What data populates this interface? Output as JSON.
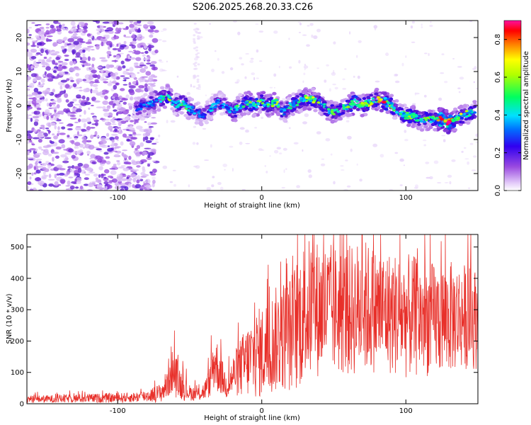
{
  "title": "S206.2025.268.20.33.C26",
  "chart_data": [
    {
      "type": "heatmap",
      "name": "spectrogram",
      "xlabel": "Height of straight line (km)",
      "ylabel": "Frequency (Hz)",
      "xlim": [
        -163,
        150
      ],
      "ylim": [
        -25,
        25
      ],
      "xticks": [
        -100,
        0,
        100
      ],
      "xtick_labels": [
        "-100",
        "0",
        "100"
      ],
      "yticks": [
        -20,
        -10,
        0,
        10,
        20
      ],
      "ytick_labels": [
        "-20",
        "-10",
        "0",
        "10",
        "20"
      ],
      "colorbar": {
        "label": "Normalized spectral amplitude",
        "range": [
          0.0,
          0.9
        ],
        "ticks": [
          0.0,
          0.2,
          0.4,
          0.6,
          0.8
        ],
        "tick_labels": [
          "0.0",
          "0.2",
          "0.4",
          "0.6",
          "0.8"
        ],
        "colormap": [
          "#ffffff",
          "#e0c8f8",
          "#9a4ae0",
          "#5a1ad0",
          "#2a00f0",
          "#0060ff",
          "#00d8ff",
          "#00ff80",
          "#a0ff00",
          "#ffff00",
          "#ff8000",
          "#ff0000",
          "#ff00a0"
        ]
      },
      "ridge": {
        "x": [
          -88,
          -82,
          -75,
          -70,
          -65,
          -60,
          -55,
          -50,
          -45,
          -40,
          -35,
          -30,
          -25,
          -20,
          -15,
          -10,
          -5,
          0,
          5,
          10,
          15,
          20,
          25,
          30,
          35,
          40,
          45,
          50,
          55,
          60,
          65,
          70,
          75,
          80,
          85,
          90,
          95,
          100,
          105,
          110,
          115,
          120,
          125,
          130,
          135,
          140,
          145,
          148
        ],
        "freq": [
          -1,
          0,
          1,
          2,
          3,
          0,
          1,
          -1,
          -2,
          -3,
          -1,
          1,
          0,
          -2,
          0,
          1,
          0,
          1,
          0,
          1,
          -2,
          0,
          1,
          2,
          2,
          1,
          -1,
          -2,
          -1,
          0,
          1,
          0,
          1,
          2,
          1,
          0,
          -2,
          -3,
          -3,
          -4,
          -4,
          -4,
          -4,
          -5,
          -4,
          -3,
          -2,
          -2
        ],
        "amplitude": [
          0.3,
          0.35,
          0.45,
          0.4,
          0.55,
          0.4,
          0.5,
          0.45,
          0.4,
          0.35,
          0.4,
          0.4,
          0.35,
          0.5,
          0.45,
          0.5,
          0.55,
          0.6,
          0.5,
          0.55,
          0.45,
          0.5,
          0.5,
          0.55,
          0.6,
          0.5,
          0.45,
          0.5,
          0.55,
          0.5,
          0.6,
          0.55,
          0.6,
          0.55,
          0.85,
          0.5,
          0.45,
          0.5,
          0.55,
          0.45,
          0.5,
          0.55,
          0.85,
          0.9,
          0.6,
          0.55,
          0.5,
          0.45
        ]
      }
    },
    {
      "type": "line",
      "name": "snr",
      "xlabel": "Height of straight line (km)",
      "ylabel": "SNR (10 * v/v)",
      "xlim": [
        -163,
        150
      ],
      "ylim": [
        0,
        540
      ],
      "xticks": [
        -100,
        0,
        100
      ],
      "xtick_labels": [
        "-100",
        "0",
        "100"
      ],
      "yticks": [
        0,
        100,
        200,
        300,
        400,
        500
      ],
      "ytick_labels": [
        "0",
        "100",
        "200",
        "300",
        "400",
        "500"
      ],
      "color": "#e8302a",
      "envelope": {
        "x": [
          -163,
          -150,
          -130,
          -110,
          -90,
          -80,
          -70,
          -66,
          -63,
          -60,
          -55,
          -50,
          -45,
          -40,
          -36,
          -33,
          -30,
          -27,
          -25,
          -22,
          -20,
          -15,
          -10,
          -5,
          0,
          5,
          10,
          15,
          20,
          25,
          30,
          40,
          50,
          60,
          70,
          80,
          90,
          100,
          110,
          120,
          130,
          140,
          150
        ],
        "mean": [
          15,
          15,
          17,
          18,
          20,
          25,
          35,
          60,
          110,
          90,
          55,
          35,
          30,
          40,
          70,
          140,
          110,
          80,
          60,
          70,
          90,
          115,
          135,
          155,
          165,
          185,
          205,
          220,
          225,
          260,
          300,
          305,
          300,
          295,
          310,
          300,
          290,
          280,
          275,
          270,
          275,
          280,
          270
        ],
        "spread": [
          12,
          12,
          14,
          15,
          16,
          20,
          30,
          50,
          80,
          70,
          45,
          25,
          22,
          30,
          50,
          100,
          80,
          55,
          45,
          55,
          65,
          95,
          120,
          140,
          150,
          160,
          170,
          180,
          190,
          220,
          230,
          220,
          210,
          210,
          220,
          200,
          200,
          200,
          190,
          180,
          180,
          170,
          160
        ]
      }
    }
  ]
}
